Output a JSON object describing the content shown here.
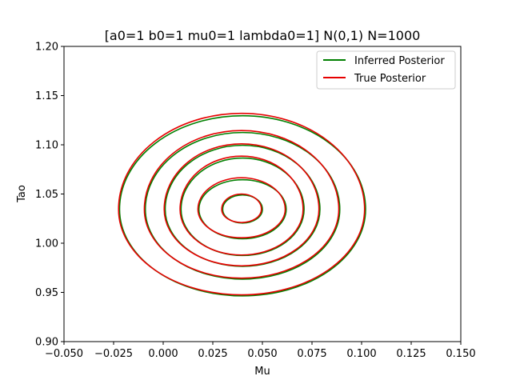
{
  "chart_data": {
    "type": "contour",
    "title": "[a0=1 b0=1 mu0=1 lambda0=1] N(0,1) N=1000",
    "xlabel": "Mu",
    "ylabel": "Tao",
    "xlim": [
      -0.05,
      0.15
    ],
    "ylim": [
      0.9,
      1.2
    ],
    "x_ticks": [
      "-0.050",
      "-0.025",
      "0.000",
      "0.025",
      "0.050",
      "0.075",
      "0.100",
      "0.125",
      "0.150"
    ],
    "y_ticks": [
      "0.90",
      "0.95",
      "1.00",
      "1.05",
      "1.10",
      "1.15",
      "1.20"
    ],
    "grid": false,
    "legend_position": "upper right",
    "series": [
      {
        "name": "Inferred Posterior",
        "color": "#008000",
        "center": [
          0.04,
          1.0345
        ],
        "ellipses": [
          {
            "rx": 0.062,
            "ry_up": 0.095,
            "ry_down": 0.088
          },
          {
            "rx": 0.049,
            "ry_up": 0.078,
            "ry_down": 0.071
          },
          {
            "rx": 0.039,
            "ry_up": 0.065,
            "ry_down": 0.058
          },
          {
            "rx": 0.031,
            "ry_up": 0.052,
            "ry_down": 0.047
          },
          {
            "rx": 0.022,
            "ry_up": 0.03,
            "ry_down": 0.03
          },
          {
            "rx": 0.01,
            "ry_up": 0.0145,
            "ry_down": 0.014
          }
        ]
      },
      {
        "name": "True Posterior",
        "color": "#e60000",
        "center": [
          0.0395,
          1.0345
        ],
        "ellipses": [
          {
            "rx": 0.062,
            "ry_up": 0.0975,
            "ry_down": 0.087
          },
          {
            "rx": 0.049,
            "ry_up": 0.08,
            "ry_down": 0.07
          },
          {
            "rx": 0.039,
            "ry_up": 0.0665,
            "ry_down": 0.0575
          },
          {
            "rx": 0.031,
            "ry_up": 0.054,
            "ry_down": 0.0465
          },
          {
            "rx": 0.022,
            "ry_up": 0.032,
            "ry_down": 0.029
          },
          {
            "rx": 0.01,
            "ry_up": 0.0155,
            "ry_down": 0.0135
          }
        ]
      }
    ]
  }
}
